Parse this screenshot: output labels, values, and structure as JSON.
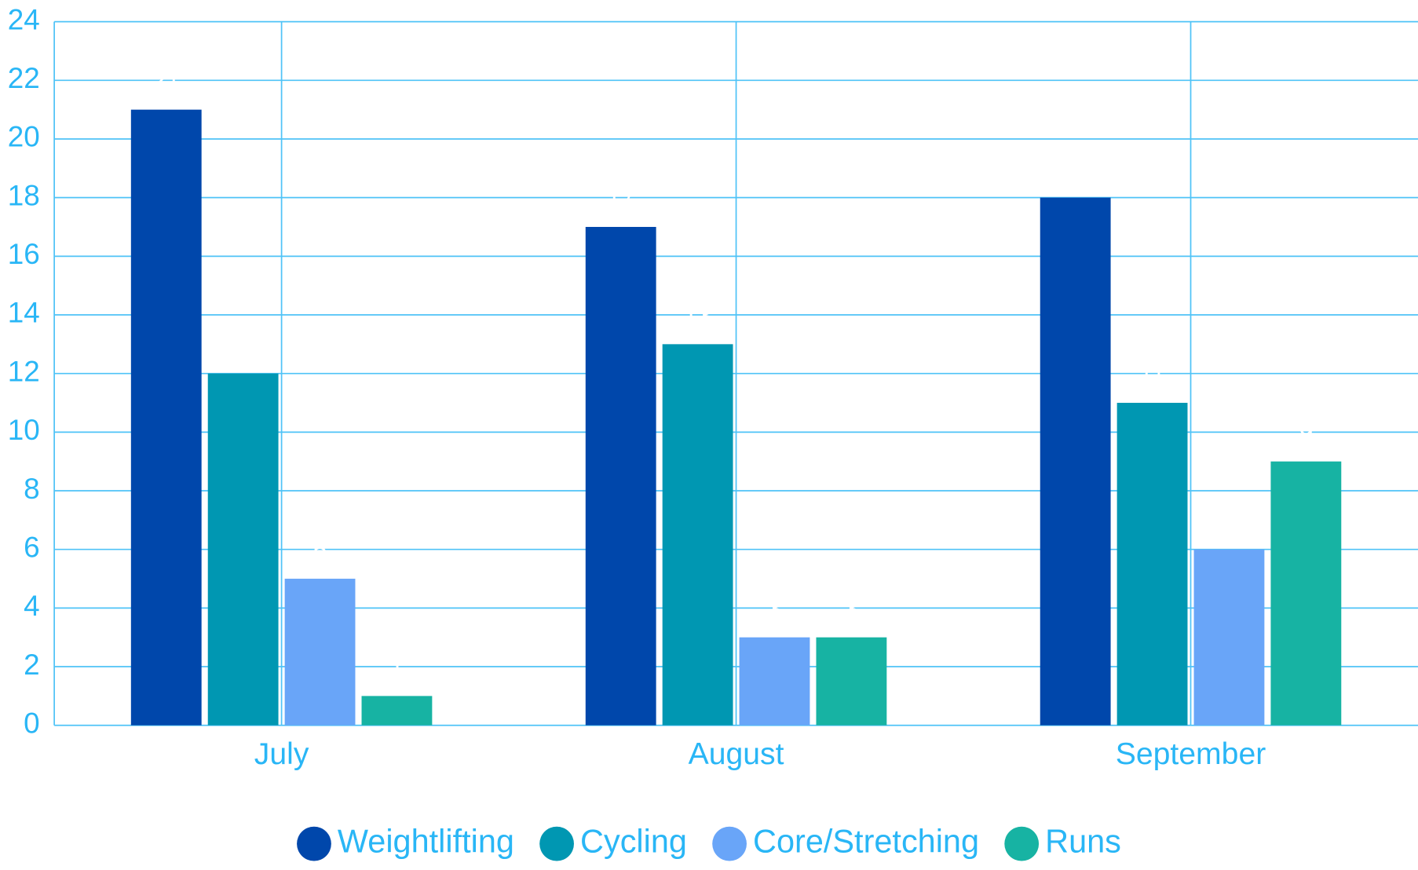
{
  "chart_data": {
    "type": "bar",
    "categories": [
      "July",
      "August",
      "September"
    ],
    "series": [
      {
        "name": "Weightlifting",
        "color": "#0047ab",
        "values": [
          21,
          17,
          18
        ]
      },
      {
        "name": "Cycling",
        "color": "#0097b2",
        "values": [
          12,
          13,
          11
        ]
      },
      {
        "name": "Core/Stretching",
        "color": "#69a5f8",
        "values": [
          5,
          3,
          6
        ]
      },
      {
        "name": "Runs",
        "color": "#17b3a3",
        "values": [
          1,
          3,
          9
        ]
      }
    ],
    "ylim": [
      0,
      24
    ],
    "yticks": [
      0,
      2,
      4,
      6,
      8,
      10,
      12,
      14,
      16,
      18,
      20,
      22,
      24
    ],
    "grid": true,
    "legend": "bottom"
  }
}
